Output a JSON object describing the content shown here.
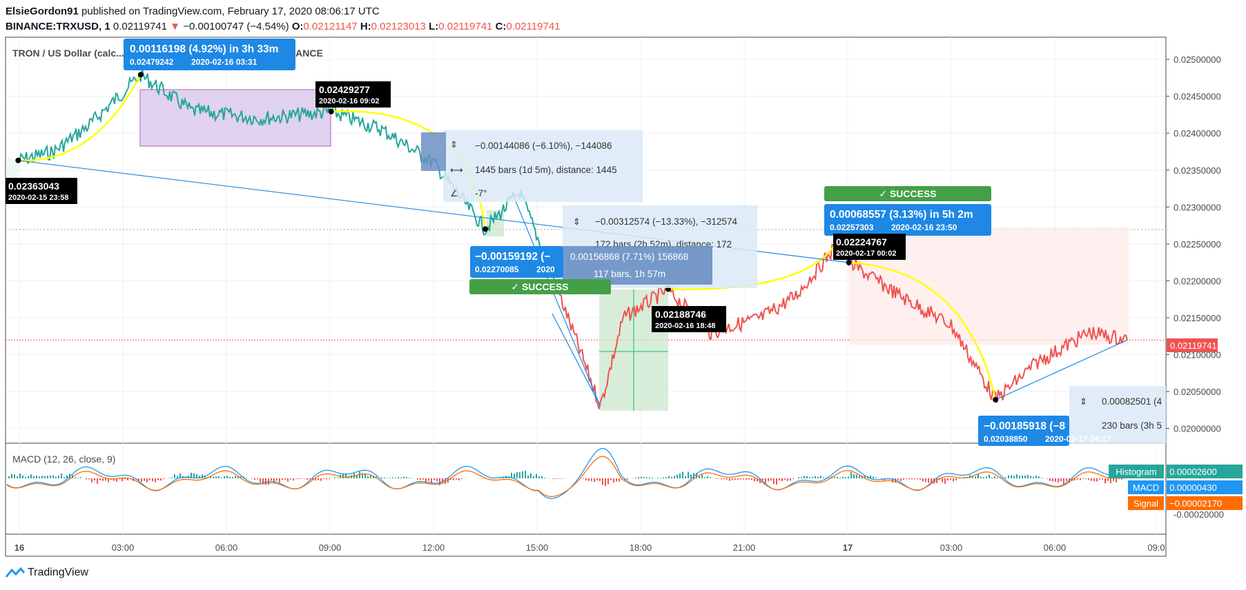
{
  "header": {
    "author": "ElsieGordon91",
    "published_text": "published on TradingView.com, February 17, 2020 08:06:17 UTC",
    "symbol": "BINANCE:TRXUSD, 1",
    "last_price": "0.02119741",
    "change": "−0.00100747 (−4.54%)",
    "open_label": "O:",
    "open": "0.02121147",
    "high_label": "H:",
    "high": "0.02123013",
    "low_label": "L:",
    "low": "0.02119741",
    "close_label": "C:",
    "close": "0.02119741"
  },
  "chart_title": "TRON / US Dollar (calc...",
  "chart_title_suffix": "BINANCE",
  "macd_title": "MACD (12, 26, close, 9)",
  "branding": "TradingView",
  "colors": {
    "up": "#26a69a",
    "down": "#ef5350",
    "annotation_yellow": "#ffff00",
    "label_blue": "#1e88e5",
    "success_green": "#43a047",
    "macd_line": "#2196f3",
    "signal_line": "#ff6d00",
    "histogram_label": "#26a69a"
  },
  "price_axis_labels": [
    "0.02500000",
    "0.02450000",
    "0.02400000",
    "0.02350000",
    "0.02300000",
    "0.02250000",
    "0.02200000",
    "0.02150000",
    "0.02100000",
    "0.02050000",
    "0.02000000"
  ],
  "current_price_label": "0.02119741",
  "macd_axis_label": "-0.00020000",
  "macd_legend": {
    "histogram_label": "Histogram",
    "histogram_value": "0.00002600",
    "macd_label": "MACD",
    "macd_value": "0.00000430",
    "signal_label": "Signal",
    "signal_value": "−0.00002170"
  },
  "time_axis_labels": [
    "16",
    "03:00",
    "06:00",
    "09:00",
    "12:00",
    "15:00",
    "18:00",
    "21:00",
    "17",
    "03:00",
    "06:00",
    "09:0"
  ],
  "annotations": {
    "tag_start": {
      "price": "0.02363043",
      "time": "2020-02-15 23:58"
    },
    "tag_peak": {
      "price": "0.02429277",
      "time": "2020-02-16 09:02"
    },
    "tag_1848": {
      "price": "0.02188746",
      "time": "2020-02-16 18:48"
    },
    "tag_0002": {
      "price": "0.02224767",
      "time": "2020-02-17 00:02"
    },
    "callout_top": {
      "line1": "0.00116198 (4.92%) in 3h 33m",
      "line2": "0.02479242",
      "line2_time": "2020-02-16   03:31"
    },
    "callout_mid": {
      "line1": "−0.00159192 (−",
      "line2": "0.02270085",
      "line2_time": "2020"
    },
    "callout_right": {
      "line1": "0.00068557 (3.13%) in 5h 2m",
      "line2": "0.02257303",
      "line2_time": "2020-02-16   23:50"
    },
    "callout_bottom": {
      "line1": "−0.00185918 (−8",
      "line2": "0.02038850",
      "line2_time": "2020-02-17  04:17"
    },
    "success_1": "✓ SUCCESS",
    "success_2": "✓ SUCCESS",
    "measure_1": {
      "line1": "−0.00144086 (−6.10%), −144086",
      "line2": "1445 bars (1d 5m), distance: 1445",
      "line3": "-7°"
    },
    "measure_2": {
      "line1": "−0.00312574 (−13.33%), −312574",
      "line2": "172 bars (2h 52m), distance: 172"
    },
    "measure_3": {
      "line1": "0.00156868 (7.71%) 156868",
      "line2": "117 bars, 1h 57m"
    },
    "measure_4": {
      "line1": "0.00082501 (4",
      "line2": "230 bars (3h 5"
    }
  },
  "chart_data": {
    "type": "line",
    "title": "TRON / US Dollar",
    "x": [
      "2020-02-15 23:58",
      "2020-02-16 01:00",
      "2020-02-16 02:00",
      "2020-02-16 03:31",
      "2020-02-16 05:00",
      "2020-02-16 07:00",
      "2020-02-16 09:02",
      "2020-02-16 10:30",
      "2020-02-16 12:00",
      "2020-02-16 13:30",
      "2020-02-16 14:30",
      "2020-02-16 15:30",
      "2020-02-16 16:50",
      "2020-02-16 17:30",
      "2020-02-16 18:48",
      "2020-02-16 20:00",
      "2020-02-16 21:30",
      "2020-02-16 22:30",
      "2020-02-16 23:50",
      "2020-02-17 00:02",
      "2020-02-17 01:30",
      "2020-02-17 03:00",
      "2020-02-17 04:17",
      "2020-02-17 05:30",
      "2020-02-17 07:00",
      "2020-02-17 08:06"
    ],
    "series": [
      {
        "values": [
          0.02363,
          0.02375,
          0.0241,
          0.02479,
          0.0243,
          0.0242,
          0.02429,
          0.02405,
          0.0236,
          0.0227,
          0.0232,
          0.022,
          0.0203,
          0.0215,
          0.02188,
          0.0213,
          0.0215,
          0.0218,
          0.02257,
          0.02225,
          0.0218,
          0.0214,
          0.02039,
          0.0209,
          0.0213,
          0.0212
        ]
      }
    ],
    "ylim": [
      0.0198,
      0.0253
    ],
    "y_ticks": [
      0.025,
      0.0245,
      0.024,
      0.0235,
      0.023,
      0.0225,
      0.022,
      0.0215,
      0.021,
      0.0205,
      0.02
    ],
    "macd": {
      "histogram": 2.6e-05,
      "macd": 4.3e-06,
      "signal": -2.17e-05
    },
    "grid": true
  }
}
